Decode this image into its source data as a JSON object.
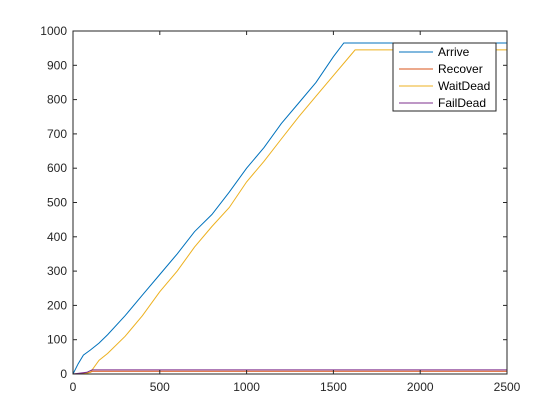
{
  "chart_data": {
    "type": "line",
    "title": "",
    "xlabel": "",
    "ylabel": "",
    "xlim": [
      0,
      2500
    ],
    "ylim": [
      0,
      1000
    ],
    "xticks": [
      0,
      500,
      1000,
      1500,
      2000,
      2500
    ],
    "yticks": [
      0,
      100,
      200,
      300,
      400,
      500,
      600,
      700,
      800,
      900,
      1000
    ],
    "grid": false,
    "legend_position": "top-right",
    "series": [
      {
        "name": "Arrive",
        "color": "#0072bd",
        "x": [
          0,
          30,
          60,
          100,
          150,
          200,
          300,
          400,
          500,
          600,
          700,
          800,
          900,
          1000,
          1100,
          1200,
          1300,
          1400,
          1500,
          1560,
          2500
        ],
        "y": [
          0,
          30,
          55,
          70,
          90,
          115,
          170,
          230,
          290,
          350,
          415,
          465,
          530,
          600,
          660,
          730,
          790,
          850,
          925,
          965,
          965
        ]
      },
      {
        "name": "Recover",
        "color": "#d95319",
        "x": [
          0,
          60,
          100,
          110,
          2500
        ],
        "y": [
          0,
          2,
          5,
          8,
          8
        ]
      },
      {
        "name": "WaitDead",
        "color": "#edb120",
        "x": [
          0,
          60,
          100,
          150,
          200,
          300,
          400,
          500,
          600,
          700,
          800,
          900,
          1000,
          1100,
          1200,
          1300,
          1400,
          1500,
          1600,
          1625,
          2500
        ],
        "y": [
          0,
          0,
          5,
          40,
          60,
          110,
          170,
          240,
          300,
          370,
          430,
          485,
          560,
          620,
          685,
          750,
          810,
          870,
          930,
          945,
          945
        ]
      },
      {
        "name": "FailDead",
        "color": "#7e2f8e",
        "x": [
          0,
          80,
          110,
          2500
        ],
        "y": [
          0,
          5,
          12,
          12
        ]
      }
    ]
  }
}
